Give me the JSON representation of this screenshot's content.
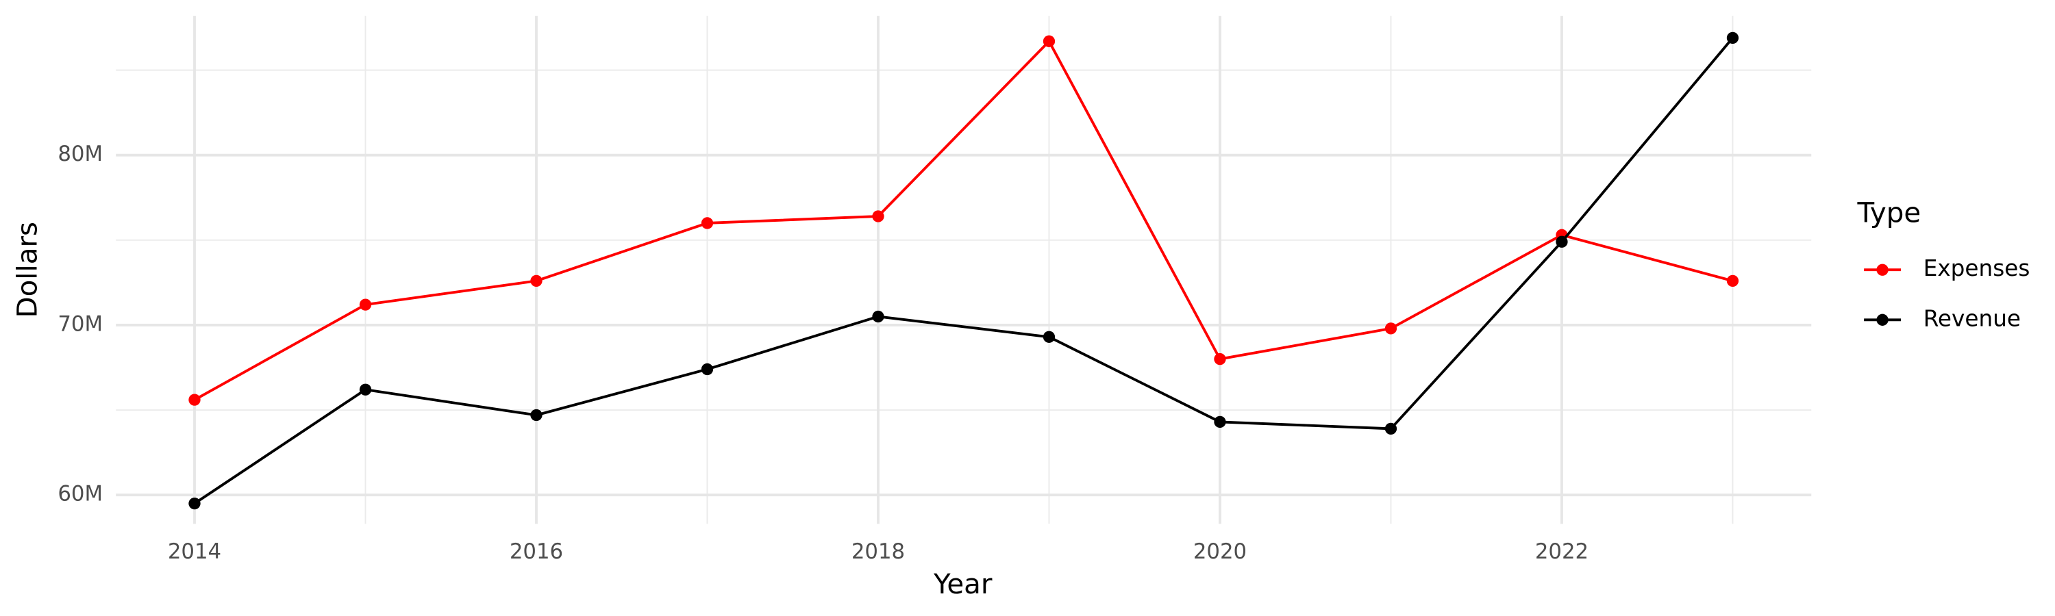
{
  "chart_data": {
    "type": "line",
    "x_label": "Year",
    "y_label": "Dollars",
    "x": [
      2014,
      2015,
      2016,
      2017,
      2018,
      2019,
      2020,
      2021,
      2022,
      2023
    ],
    "series": [
      {
        "name": "Expenses",
        "color": "#ff0000",
        "values": [
          65.6,
          71.2,
          72.6,
          76.0,
          76.4,
          86.7,
          68.0,
          69.8,
          75.3,
          72.6
        ]
      },
      {
        "name": "Revenue",
        "color": "#000000",
        "values": [
          59.5,
          66.2,
          64.7,
          67.4,
          70.5,
          69.3,
          64.3,
          63.9,
          74.9,
          86.9
        ]
      }
    ],
    "xlim": [
      2013.54,
      2023.46
    ],
    "xticks": [
      2014,
      2016,
      2018,
      2020,
      2022
    ],
    "xminor": [
      2015,
      2017,
      2019,
      2021,
      2023
    ],
    "ylim": [
      58.3,
      88.2
    ],
    "yticks": [
      {
        "value": 60,
        "label": "60M"
      },
      {
        "value": 70,
        "label": "70M"
      },
      {
        "value": 80,
        "label": "80M"
      }
    ],
    "yminor": [
      65,
      75,
      85
    ],
    "grid": true,
    "legend_title": "Type",
    "legend_position": "right"
  }
}
